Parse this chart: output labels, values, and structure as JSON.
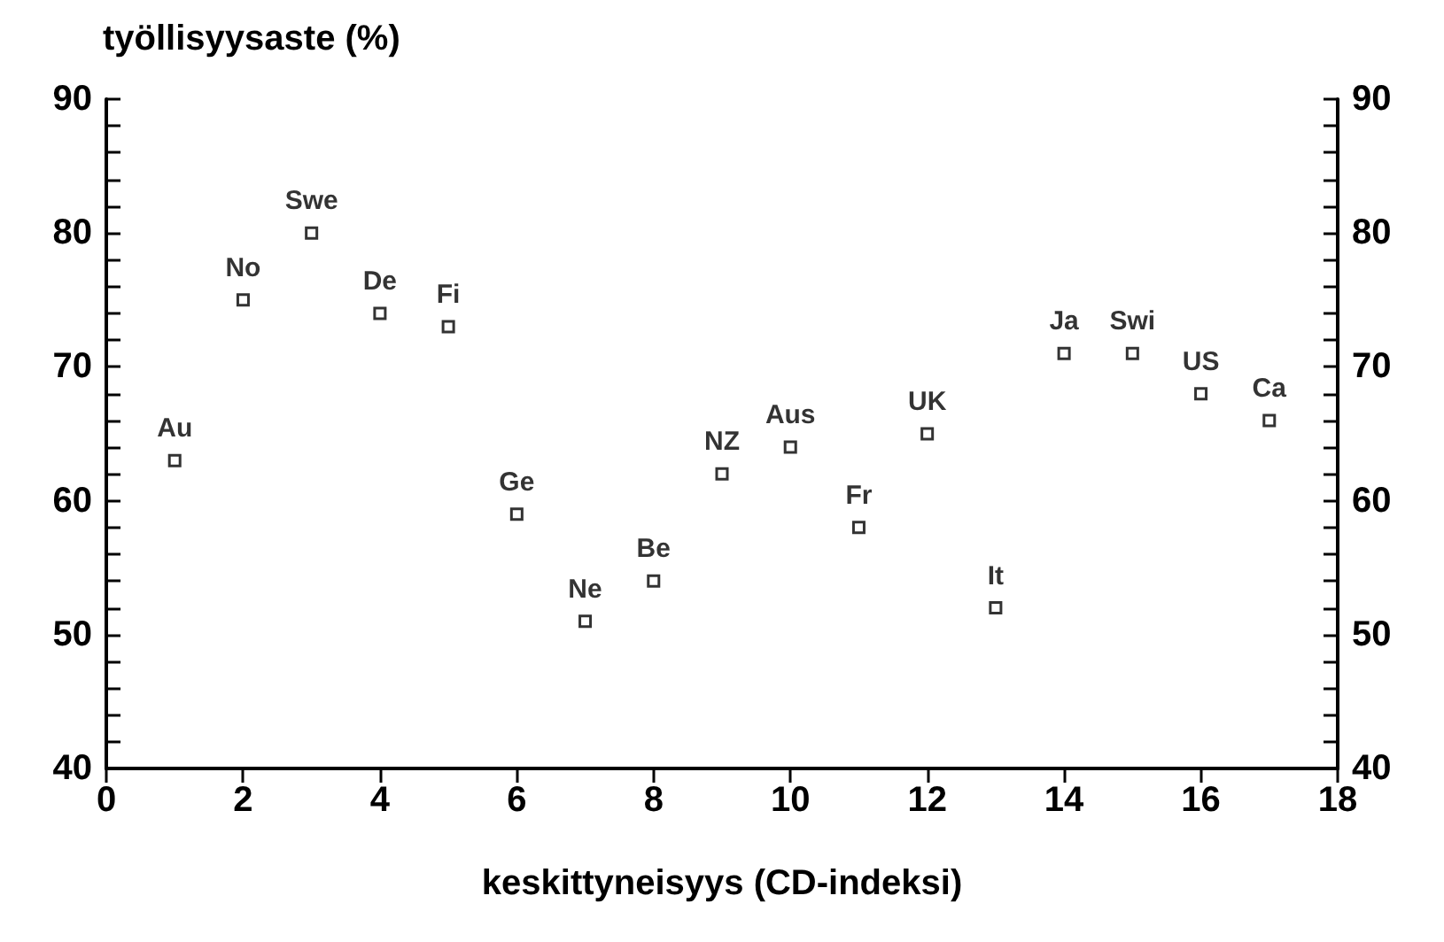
{
  "chart_data": {
    "type": "scatter",
    "ylabel": "työllisyysaste (%)",
    "xlabel": "keskittyneisyys (CD-indeksi)",
    "x": [
      1,
      2,
      3,
      4,
      5,
      6,
      7,
      8,
      9,
      10,
      11,
      12,
      13,
      14,
      15,
      16,
      17
    ],
    "series": [
      {
        "color": "#000000",
        "values": [
          63,
          75,
          80,
          74,
          73,
          59,
          51,
          54,
          62,
          64,
          58,
          65,
          52,
          71,
          71,
          68,
          66
        ]
      }
    ],
    "annotations": [
      {
        "text": "Au",
        "x": 1,
        "y": 63
      },
      {
        "text": "No",
        "x": 2,
        "y": 75
      },
      {
        "text": "Swe",
        "x": 3,
        "y": 80
      },
      {
        "text": "De",
        "x": 4,
        "y": 74
      },
      {
        "text": "Fi",
        "x": 5,
        "y": 73
      },
      {
        "text": "Ge",
        "x": 6,
        "y": 59
      },
      {
        "text": "Ne",
        "x": 7,
        "y": 51
      },
      {
        "text": "Be",
        "x": 8,
        "y": 54
      },
      {
        "text": "NZ",
        "x": 9,
        "y": 62
      },
      {
        "text": "Aus",
        "x": 10,
        "y": 64
      },
      {
        "text": "Fr",
        "x": 11,
        "y": 58
      },
      {
        "text": "UK",
        "x": 12,
        "y": 65
      },
      {
        "text": "It",
        "x": 13,
        "y": 52
      },
      {
        "text": "Ja",
        "x": 14,
        "y": 71
      },
      {
        "text": "Swi",
        "x": 15,
        "y": 71
      },
      {
        "text": "US",
        "x": 16,
        "y": 68
      },
      {
        "text": "Ca",
        "x": 17,
        "y": 66
      }
    ],
    "xlim": [
      0,
      18
    ],
    "xticks": [
      0,
      2,
      4,
      6,
      8,
      10,
      12,
      14,
      16,
      18
    ],
    "ylim": [
      40,
      90
    ],
    "yticks": [
      40,
      {
        "value": 42,
        "label": null
      },
      {
        "value": 44,
        "label": null
      },
      {
        "value": 46,
        "label": null
      },
      {
        "value": 48,
        "label": null
      },
      50,
      {
        "value": 52,
        "label": null
      },
      {
        "value": 54,
        "label": null
      },
      {
        "value": 56,
        "label": null
      },
      {
        "value": 58,
        "label": null
      },
      60,
      {
        "value": 62,
        "label": null
      },
      {
        "value": 64,
        "label": null
      },
      {
        "value": 66,
        "label": null
      },
      {
        "value": 68,
        "label": null
      },
      70,
      {
        "value": 72,
        "label": null
      },
      {
        "value": 74,
        "label": null
      },
      {
        "value": 76,
        "label": null
      },
      {
        "value": 78,
        "label": null
      },
      80,
      {
        "value": 82,
        "label": null
      },
      {
        "value": 84,
        "label": null
      },
      {
        "value": 86,
        "label": null
      },
      {
        "value": 88,
        "label": null
      },
      90
    ],
    "y2lim": [
      40,
      90
    ],
    "y2ticks": [
      40,
      {
        "value": 42,
        "label": null
      },
      {
        "value": 44,
        "label": null
      },
      {
        "value": 46,
        "label": null
      },
      {
        "value": 48,
        "label": null
      },
      50,
      {
        "value": 52,
        "label": null
      },
      {
        "value": 54,
        "label": null
      },
      {
        "value": 56,
        "label": null
      },
      {
        "value": 58,
        "label": null
      },
      60,
      {
        "value": 62,
        "label": null
      },
      {
        "value": 64,
        "label": null
      },
      {
        "value": 66,
        "label": null
      },
      {
        "value": 68,
        "label": null
      },
      70,
      {
        "value": 72,
        "label": null
      },
      {
        "value": 74,
        "label": null
      },
      {
        "value": 76,
        "label": null
      },
      {
        "value": 78,
        "label": null
      },
      80,
      {
        "value": 82,
        "label": null
      },
      {
        "value": 84,
        "label": null
      },
      {
        "value": 86,
        "label": null
      },
      {
        "value": 88,
        "label": null
      },
      90
    ],
    "marker": "square",
    "grid": false
  }
}
